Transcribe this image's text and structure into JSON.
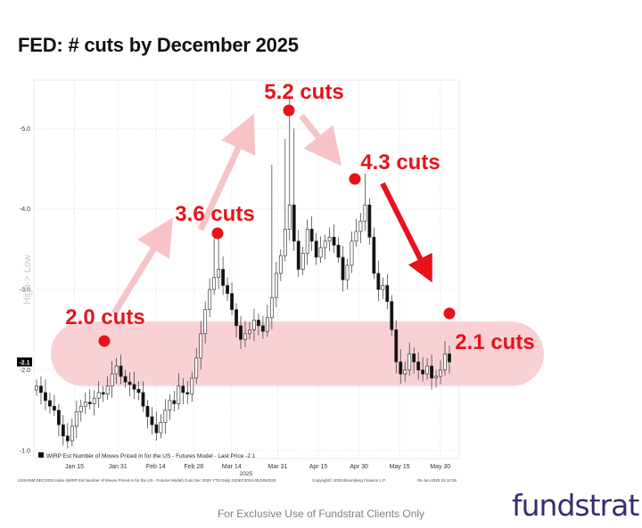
{
  "title": "FED: # cuts by December 2025",
  "footer": "For Exclusive Use of Fundstrat Clients Only",
  "brand": "fundstrat",
  "source": "USSANM DEC2025 Index (WIRP Est Number of Moves Priced in for the US - Futures Model) Cuts Dec 2025 YTD  Daily 31DEC2024-05JUN2025",
  "copyright": "Copyright© 2025 Bloomberg Finance L.P.",
  "timestamp": "05-Jun-2025 16:10:36",
  "colors": {
    "accent_red": "#e8121a",
    "band_fill": "#f8c9cc",
    "arrow_light": "#f7c3c6",
    "brand": "#3b2a70"
  },
  "chart_data": {
    "type": "candlestick",
    "ylabel": "High-> Low",
    "xlabel": "2025",
    "legend_label": "WIRP Est Number of Moves Priced in for the US - Futures Model - Last Price -2.1",
    "legend_position": "bottom-left",
    "last_price_tag": "-2.1",
    "yticks": [
      -1.0,
      -2.0,
      -3.0,
      -4.0,
      -5.0
    ],
    "ytick_labels": [
      "-1.0",
      "-2.0",
      "-3.0",
      "-4.0",
      "-5.0"
    ],
    "ylim": [
      -0.9,
      -5.6
    ],
    "x_tick_labels": [
      "Jan 15",
      "Jan 31",
      "Feb 14",
      "Feb 28",
      "Mar 14",
      "Mar 31",
      "Apr 15",
      "Apr 30",
      "May 15",
      "May 30"
    ],
    "x_tick_dates": [
      "2025-01-15",
      "2025-01-31",
      "2025-02-14",
      "2025-02-28",
      "2025-03-14",
      "2025-03-31",
      "2025-04-15",
      "2025-04-30",
      "2025-05-15",
      "2025-05-30"
    ],
    "x_range": [
      "2024-12-31",
      "2025-06-06"
    ],
    "grid": true,
    "series": [
      {
        "close": [
          -1.8,
          -1.72,
          -1.62,
          -1.55,
          -1.5,
          -1.32,
          -1.18,
          -1.12,
          -1.3,
          -1.48,
          -1.55,
          -1.6,
          -1.58,
          -1.65,
          -1.72,
          -1.7,
          -1.8,
          -1.95,
          -2.05,
          -1.92,
          -1.85,
          -1.82,
          -1.76,
          -1.72,
          -1.55,
          -1.42,
          -1.32,
          -1.22,
          -1.35,
          -1.5,
          -1.62,
          -1.58,
          -1.8,
          -1.72,
          -1.7,
          -1.9,
          -2.15,
          -2.45,
          -2.75,
          -3.0,
          -3.15,
          -3.25,
          -3.05,
          -2.95,
          -2.75,
          -2.55,
          -2.38,
          -2.45,
          -2.5,
          -2.62,
          -2.55,
          -2.48,
          -2.65,
          -2.9,
          -3.2,
          -3.42,
          -3.75,
          -4.05,
          -3.6,
          -3.25,
          -3.45,
          -3.75,
          -3.6,
          -3.4,
          -3.52,
          -3.6,
          -3.65,
          -3.55,
          -3.4,
          -3.12,
          -3.3,
          -3.6,
          -3.72,
          -3.85,
          -4.05,
          -3.65,
          -3.2,
          -3.0,
          -3.05,
          -2.85,
          -2.5,
          -2.1,
          -1.95,
          -2.0,
          -2.2,
          -2.1,
          -2.0,
          -1.95,
          -2.05,
          -1.9,
          -1.92,
          -2.0,
          -2.2,
          -2.1
        ]
      }
    ],
    "annotations": [
      {
        "label": "2.0 cuts",
        "date": "2025-01-27",
        "value": -2.15
      },
      {
        "label": "3.6 cuts",
        "date": "2025-03-11",
        "value": -3.6
      },
      {
        "label": "5.2 cuts",
        "date": "2025-04-04",
        "value": -5.2
      },
      {
        "label": "4.3 cuts",
        "date": "2025-04-28",
        "value": -4.3
      },
      {
        "label": "2.1 cuts",
        "date": "2025-06-03",
        "value": -2.5
      }
    ],
    "highlight_band": [
      -1.8,
      -2.6
    ]
  }
}
